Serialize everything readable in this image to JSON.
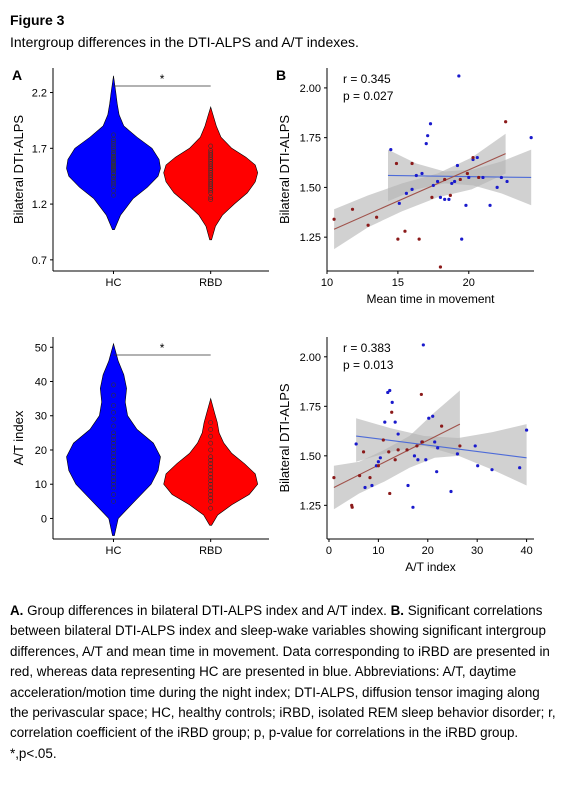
{
  "figure": {
    "title": "Figure 3",
    "subtitle": "Intergroup differences in the DTI-ALPS and A/T indexes."
  },
  "panels": {
    "A": "A",
    "B": "B"
  },
  "caption": {
    "a_label": "A.",
    "a_text": " Group differences in bilateral DTI-ALPS index and A/T index. ",
    "b_label": "B.",
    "b_text": " Significant correlations between bilateral DTI-ALPS index and sleep-wake variables showing significant intergroup differences, A/T and mean time in movement. Data corresponding to iRBD are presented in red, whereas data representing HC are presented in blue. Abbreviations: A/T, daytime acceleration/motion time during the night index; DTI-ALPS, diffusion tensor imaging along the perivascular space; HC, healthy controls; iRBD, isolated REM sleep behavior disorder; r, correlation coefficient of the iRBD group; p, p-value for correlations in the iRBD group. *,p<.05."
  },
  "colors": {
    "hc": "#0000ff",
    "rbd": "#ff0000",
    "hc_point": "#1a1acc",
    "rbd_point": "#8b1a1a",
    "rbd_line": "#a0524b",
    "hc_line": "#4d6bd8",
    "band": "#b3b3b3"
  },
  "chart_data": [
    {
      "id": "violin-alps",
      "type": "violin",
      "categories": [
        "HC",
        "RBD"
      ],
      "ylabel": "Bilateral DTI-ALPS",
      "ylim": [
        0.6,
        2.42
      ],
      "yticks": [
        0.7,
        1.2,
        1.7,
        2.2
      ],
      "ytick_labels": [
        "0.7",
        "1.2",
        "1.7",
        "2.2"
      ],
      "significance": "*",
      "series": [
        {
          "group": "HC",
          "min": 0.97,
          "max": 2.35,
          "density": [
            [
              0.97,
              0.02
            ],
            [
              1.1,
              0.15
            ],
            [
              1.25,
              0.42
            ],
            [
              1.35,
              0.72
            ],
            [
              1.45,
              0.95
            ],
            [
              1.52,
              1.0
            ],
            [
              1.6,
              0.97
            ],
            [
              1.7,
              0.82
            ],
            [
              1.8,
              0.5
            ],
            [
              1.9,
              0.22
            ],
            [
              2.0,
              0.12
            ],
            [
              2.1,
              0.08
            ],
            [
              2.2,
              0.05
            ],
            [
              2.35,
              0.0
            ]
          ],
          "points": [
            1.28,
            1.32,
            1.36,
            1.38,
            1.4,
            1.42,
            1.44,
            1.45,
            1.47,
            1.48,
            1.5,
            1.51,
            1.52,
            1.53,
            1.54,
            1.55,
            1.56,
            1.57,
            1.58,
            1.6,
            1.61,
            1.62,
            1.63,
            1.65,
            1.66,
            1.68,
            1.7,
            1.72,
            1.74,
            1.76,
            1.78,
            1.82
          ]
        },
        {
          "group": "RBD",
          "min": 0.88,
          "max": 2.07,
          "density": [
            [
              0.88,
              0.02
            ],
            [
              1.0,
              0.1
            ],
            [
              1.1,
              0.25
            ],
            [
              1.2,
              0.5
            ],
            [
              1.3,
              0.78
            ],
            [
              1.4,
              0.95
            ],
            [
              1.48,
              1.0
            ],
            [
              1.55,
              0.95
            ],
            [
              1.62,
              0.75
            ],
            [
              1.7,
              0.45
            ],
            [
              1.8,
              0.22
            ],
            [
              1.9,
              0.12
            ],
            [
              2.0,
              0.05
            ],
            [
              2.07,
              0.0
            ]
          ],
          "points": [
            1.24,
            1.26,
            1.3,
            1.32,
            1.34,
            1.36,
            1.38,
            1.4,
            1.42,
            1.44,
            1.46,
            1.48,
            1.5,
            1.52,
            1.54,
            1.56,
            1.58,
            1.6,
            1.62,
            1.64,
            1.66,
            1.68,
            1.72
          ]
        }
      ]
    },
    {
      "id": "violin-at",
      "type": "violin",
      "categories": [
        "HC",
        "RBD"
      ],
      "ylabel": "A/T index",
      "ylim": [
        -6,
        53
      ],
      "yticks": [
        0,
        10,
        20,
        30,
        40,
        50
      ],
      "ytick_labels": [
        "0",
        "10",
        "20",
        "30",
        "40",
        "50"
      ],
      "significance": "*",
      "series": [
        {
          "group": "HC",
          "min": -5,
          "max": 51,
          "density": [
            [
              -5,
              0.02
            ],
            [
              0,
              0.1
            ],
            [
              5,
              0.45
            ],
            [
              10,
              0.8
            ],
            [
              14,
              0.95
            ],
            [
              18,
              1.0
            ],
            [
              22,
              0.85
            ],
            [
              26,
              0.5
            ],
            [
              30,
              0.3
            ],
            [
              34,
              0.25
            ],
            [
              38,
              0.28
            ],
            [
              42,
              0.22
            ],
            [
              46,
              0.1
            ],
            [
              51,
              0.0
            ]
          ],
          "points": [
            5,
            7,
            9,
            10,
            11,
            12,
            13,
            14,
            15,
            16,
            17,
            18,
            19,
            20,
            21,
            22,
            23,
            24,
            25,
            27,
            29,
            31,
            33,
            36,
            39
          ]
        },
        {
          "group": "RBD",
          "min": -2,
          "max": 35,
          "density": [
            [
              -2,
              0.02
            ],
            [
              1,
              0.15
            ],
            [
              4,
              0.45
            ],
            [
              7,
              0.82
            ],
            [
              10,
              1.0
            ],
            [
              13,
              0.95
            ],
            [
              16,
              0.72
            ],
            [
              19,
              0.45
            ],
            [
              22,
              0.28
            ],
            [
              25,
              0.18
            ],
            [
              28,
              0.14
            ],
            [
              31,
              0.08
            ],
            [
              35,
              0.0
            ]
          ],
          "points": [
            3,
            5,
            6,
            7,
            8,
            9,
            10,
            11,
            12,
            13,
            14,
            15,
            16,
            17,
            18,
            20,
            22,
            24,
            26,
            28
          ]
        }
      ]
    },
    {
      "id": "scatter-time",
      "type": "scatter",
      "xlabel": "Mean time in movement",
      "ylabel": "Bilateral DTI-ALPS",
      "xlim": [
        10,
        24.6
      ],
      "ylim": [
        1.08,
        2.1
      ],
      "xticks": [
        10,
        15,
        20
      ],
      "xtick_labels": [
        "10",
        "15",
        "20"
      ],
      "yticks": [
        1.25,
        1.5,
        1.75,
        2.0
      ],
      "ytick_labels": [
        "1.25",
        "1.50",
        "1.75",
        "2.00"
      ],
      "annotation": {
        "r": "r = 0.345",
        "p": "p = 0.027"
      },
      "series": [
        {
          "group": "HC",
          "points": [
            [
              14.5,
              1.69
            ],
            [
              15.1,
              1.42
            ],
            [
              15.6,
              1.47
            ],
            [
              16.0,
              1.49
            ],
            [
              16.3,
              1.56
            ],
            [
              16.7,
              1.57
            ],
            [
              17.0,
              1.72
            ],
            [
              17.1,
              1.76
            ],
            [
              17.3,
              1.82
            ],
            [
              17.5,
              1.51
            ],
            [
              17.8,
              1.53
            ],
            [
              18.0,
              1.45
            ],
            [
              18.3,
              1.44
            ],
            [
              18.6,
              1.44
            ],
            [
              18.8,
              1.52
            ],
            [
              19.0,
              1.53
            ],
            [
              19.2,
              1.61
            ],
            [
              19.3,
              2.06
            ],
            [
              19.5,
              1.24
            ],
            [
              19.8,
              1.41
            ],
            [
              20.0,
              1.55
            ],
            [
              20.3,
              1.64
            ],
            [
              20.6,
              1.65
            ],
            [
              21.0,
              1.55
            ],
            [
              21.5,
              1.41
            ],
            [
              22.0,
              1.5
            ],
            [
              22.3,
              1.55
            ],
            [
              22.7,
              1.53
            ],
            [
              24.4,
              1.75
            ]
          ],
          "fit": [
            [
              14.3,
              1.56
            ],
            [
              24.4,
              1.55
            ]
          ],
          "band_top": [
            1.69,
            1.62,
            1.58,
            1.59,
            1.63,
            1.69
          ],
          "band_bot": [
            1.43,
            1.49,
            1.52,
            1.51,
            1.47,
            1.41
          ],
          "band_x": [
            14.3,
            16.3,
            18.3,
            20.3,
            22.3,
            24.4
          ]
        },
        {
          "group": "RBD",
          "points": [
            [
              10.5,
              1.34
            ],
            [
              11.8,
              1.39
            ],
            [
              12.9,
              1.31
            ],
            [
              13.5,
              1.35
            ],
            [
              14.9,
              1.62
            ],
            [
              15.0,
              1.24
            ],
            [
              15.5,
              1.28
            ],
            [
              16.0,
              1.62
            ],
            [
              16.5,
              1.24
            ],
            [
              17.4,
              1.45
            ],
            [
              18.0,
              1.1
            ],
            [
              18.3,
              1.54
            ],
            [
              18.7,
              1.46
            ],
            [
              19.4,
              1.54
            ],
            [
              19.9,
              1.57
            ],
            [
              20.3,
              1.65
            ],
            [
              20.7,
              1.55
            ],
            [
              22.6,
              1.83
            ]
          ],
          "fit": [
            [
              10.5,
              1.29
            ],
            [
              22.6,
              1.67
            ]
          ],
          "band_top": [
            1.39,
            1.46,
            1.52,
            1.57,
            1.65,
            1.77
          ],
          "band_bot": [
            1.19,
            1.3,
            1.38,
            1.45,
            1.49,
            1.57
          ],
          "band_x": [
            10.5,
            12.9,
            15.3,
            17.8,
            20.2,
            22.6
          ]
        }
      ]
    },
    {
      "id": "scatter-at",
      "type": "scatter",
      "xlabel": "A/T index",
      "ylabel": "Bilateral DTI-ALPS",
      "xlim": [
        -0.4,
        41.5
      ],
      "ylim": [
        1.08,
        2.1
      ],
      "xticks": [
        0,
        10,
        20,
        30,
        40
      ],
      "xtick_labels": [
        "0",
        "10",
        "20",
        "30",
        "40"
      ],
      "yticks": [
        1.25,
        1.5,
        1.75,
        2.0
      ],
      "ytick_labels": [
        "1.25",
        "1.50",
        "1.75",
        "2.00"
      ],
      "annotation": {
        "r": "r = 0.383",
        "p": "p = 0.013"
      },
      "series": [
        {
          "group": "HC",
          "points": [
            [
              5.5,
              1.56
            ],
            [
              7.3,
              1.34
            ],
            [
              8.7,
              1.35
            ],
            [
              9.6,
              1.45
            ],
            [
              10.0,
              1.47
            ],
            [
              10.4,
              1.49
            ],
            [
              11.3,
              1.67
            ],
            [
              11.9,
              1.82
            ],
            [
              12.3,
              1.83
            ],
            [
              12.8,
              1.77
            ],
            [
              13.4,
              1.67
            ],
            [
              14.0,
              1.61
            ],
            [
              16.0,
              1.35
            ],
            [
              17.0,
              1.24
            ],
            [
              17.3,
              1.5
            ],
            [
              18.0,
              1.48
            ],
            [
              18.8,
              1.57
            ],
            [
              19.1,
              2.06
            ],
            [
              19.6,
              1.48
            ],
            [
              20.2,
              1.69
            ],
            [
              21.0,
              1.7
            ],
            [
              21.4,
              1.57
            ],
            [
              21.8,
              1.42
            ],
            [
              22.0,
              1.54
            ],
            [
              24.7,
              1.32
            ],
            [
              26.0,
              1.51
            ],
            [
              29.6,
              1.55
            ],
            [
              30.1,
              1.45
            ],
            [
              33.0,
              1.43
            ],
            [
              38.6,
              1.44
            ],
            [
              40.0,
              1.63
            ]
          ],
          "fit": [
            [
              5.5,
              1.6
            ],
            [
              40.0,
              1.49
            ]
          ],
          "band_top": [
            1.69,
            1.64,
            1.6,
            1.59,
            1.62,
            1.66
          ],
          "band_bot": [
            1.47,
            1.52,
            1.55,
            1.5,
            1.43,
            1.35
          ],
          "band_x": [
            5.5,
            12.4,
            19.3,
            26.2,
            33.1,
            40.0
          ]
        },
        {
          "group": "RBD",
          "points": [
            [
              1.0,
              1.39
            ],
            [
              4.6,
              1.25
            ],
            [
              4.7,
              1.24
            ],
            [
              6.2,
              1.4
            ],
            [
              7.0,
              1.52
            ],
            [
              8.3,
              1.39
            ],
            [
              10.0,
              1.45
            ],
            [
              11.0,
              1.58
            ],
            [
              12.1,
              1.52
            ],
            [
              12.3,
              1.31
            ],
            [
              12.7,
              1.72
            ],
            [
              13.4,
              1.48
            ],
            [
              14.0,
              1.53
            ],
            [
              15.8,
              1.53
            ],
            [
              17.8,
              1.55
            ],
            [
              18.7,
              1.81
            ],
            [
              18.9,
              1.57
            ],
            [
              22.8,
              1.65
            ],
            [
              26.5,
              1.55
            ]
          ],
          "fit": [
            [
              1.0,
              1.34
            ],
            [
              26.5,
              1.66
            ]
          ],
          "band_top": [
            1.45,
            1.47,
            1.53,
            1.6,
            1.72,
            1.83
          ],
          "band_bot": [
            1.23,
            1.31,
            1.37,
            1.44,
            1.49,
            1.5
          ],
          "band_x": [
            1.0,
            6.1,
            11.2,
            16.3,
            21.4,
            26.5
          ]
        }
      ]
    }
  ]
}
